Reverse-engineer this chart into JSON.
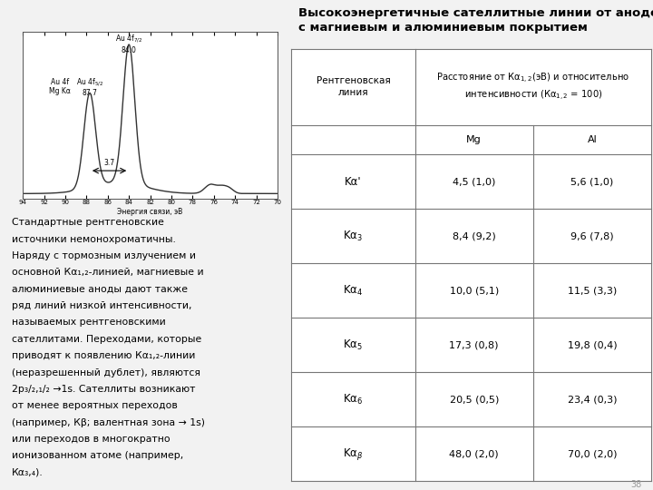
{
  "title_line1": "Высокоэнергетичные сателлитные линии от анодов",
  "title_line2": "с магниевым и алюминиевым покрытием",
  "col_header_line": "Рентгеновская\nлиния",
  "col_mg": "Mg",
  "col_al": "Al",
  "rows": [
    {
      "mg": "4,5 (1,0)",
      "al": "5,6 (1,0)"
    },
    {
      "mg": "8,4 (9,2)",
      "al": "9,6 (7,8)"
    },
    {
      "mg": "10,0 (5,1)",
      "al": "11,5 (3,3)"
    },
    {
      "mg": "17,3 (0,8)",
      "al": "19,8 (0,4)"
    },
    {
      "mg": "20,5 (0,5)",
      "al": "23,4 (0,3)"
    },
    {
      "mg": "48,0 (2,0)",
      "al": "70,0 (2,0)"
    }
  ],
  "row_labels_math": [
    "Kα'",
    "Kα$_3$",
    "Kα$_4$",
    "Kα$_5$",
    "Kα$_6$",
    "Kα$_β$"
  ],
  "page_number": "38",
  "left_text_lines": [
    "Стандартные рентгеновские",
    "источники немонохроматичны.",
    "Наряду с тормозным излучением и",
    "основной Кα₁,₂-линией, магниевые и",
    "алюминиевые аноды дают также",
    "ряд линий низкой интенсивности,",
    "называемых рентгеновскими",
    "сателлитами. Переходами, которые",
    "приводят к появлению Кα₁,₂-линии",
    "(неразрешенный дублет), являются",
    "2p₃/₂,₁/₂ →1s. Сателлиты возникают",
    "от менее вероятных переходов",
    "(например, Кβ; валентная зона → 1s)",
    "или переходов в многократно",
    "ионизованном атоме (например,",
    "Кα₃,₄)."
  ],
  "bg_color": "#f2f2f2",
  "spec_x_ticks": [
    94,
    92,
    90,
    88,
    86,
    84,
    82,
    80,
    78,
    76,
    74,
    72,
    70
  ]
}
